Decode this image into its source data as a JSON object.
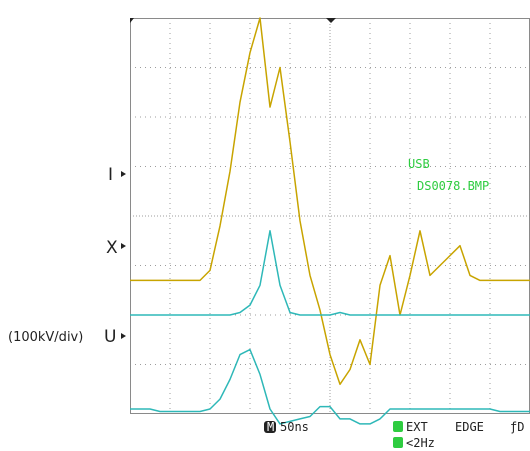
{
  "chart_data": {
    "type": "line",
    "title": "",
    "xlabel": "",
    "ylabel": "",
    "grid": true,
    "timebase": "50ns",
    "channel_labels": [
      {
        "label": "I",
        "prefix": ""
      },
      {
        "label": "X",
        "prefix": ""
      },
      {
        "label": "U",
        "prefix": "(100kV/div)"
      }
    ],
    "x_divisions": 10,
    "y_divisions": 8,
    "x": [
      0,
      0.25,
      0.5,
      0.75,
      1,
      1.25,
      1.5,
      1.75,
      2,
      2.25,
      2.5,
      2.75,
      3,
      3.25,
      3.5,
      3.75,
      4,
      4.25,
      4.5,
      4.75,
      5,
      5.25,
      5.5,
      5.75,
      6,
      6.25,
      6.5,
      6.75,
      7,
      7.25,
      7.5,
      7.75,
      8,
      8.25,
      8.5,
      8.75,
      9,
      9.25,
      9.5,
      9.75,
      10
    ],
    "x_unit": "div",
    "series": [
      {
        "id": "I",
        "color": "#c8a400",
        "values": [
          -1.3,
          -1.3,
          -1.3,
          -1.3,
          -1.3,
          -1.3,
          -1.3,
          -1.3,
          -1.1,
          -0.2,
          0.9,
          2.3,
          3.3,
          4.0,
          2.2,
          3.0,
          1.5,
          -0.1,
          -1.2,
          -1.9,
          -2.8,
          -3.4,
          -3.1,
          -2.5,
          -3.0,
          -1.4,
          -0.8,
          -2.0,
          -1.2,
          -0.3,
          -1.2,
          -1.0,
          -0.8,
          -0.6,
          -1.2,
          -1.3,
          -1.3,
          -1.3,
          -1.3,
          -1.3,
          -1.3
        ]
      },
      {
        "id": "X",
        "color": "#2eb8b8",
        "values": [
          -2.0,
          -2.0,
          -2.0,
          -2.0,
          -2.0,
          -2.0,
          -2.0,
          -2.0,
          -2.0,
          -2.0,
          -2.0,
          -1.95,
          -1.8,
          -1.4,
          -0.3,
          -1.4,
          -1.95,
          -2.0,
          -2.0,
          -2.0,
          -2.0,
          -1.95,
          -2.0,
          -2.0,
          -2.0,
          -2.0,
          -2.0,
          -2.0,
          -2.0,
          -2.0,
          -2.0,
          -2.0,
          -2.0,
          -2.0,
          -2.0,
          -2.0,
          -2.0,
          -2.0,
          -2.0,
          -2.0,
          -2.0
        ]
      },
      {
        "id": "U",
        "color": "#2eb8b8",
        "values": [
          -3.9,
          -3.9,
          -3.9,
          -3.95,
          -3.95,
          -3.95,
          -3.95,
          -3.95,
          -3.9,
          -3.7,
          -3.3,
          -2.8,
          -2.7,
          -3.2,
          -3.9,
          -4.2,
          -4.15,
          -4.1,
          -4.05,
          -3.85,
          -3.85,
          -4.1,
          -4.1,
          -4.2,
          -4.2,
          -4.1,
          -3.9,
          -3.9,
          -3.9,
          -3.9,
          -3.9,
          -3.9,
          -3.9,
          -3.9,
          -3.9,
          -3.9,
          -3.9,
          -3.95,
          -3.95,
          -3.95,
          -3.95
        ]
      }
    ]
  },
  "overlay": {
    "usb_text": "USB",
    "file_text": "DS0078.BMP",
    "status_timebase_icon": "M",
    "status_timebase": "50ns",
    "status_source": "EXT",
    "status_mode": "EDGE",
    "status_slope": "ƒD",
    "status_filter": "<2Hz",
    "text_color": "#2ecc40"
  }
}
